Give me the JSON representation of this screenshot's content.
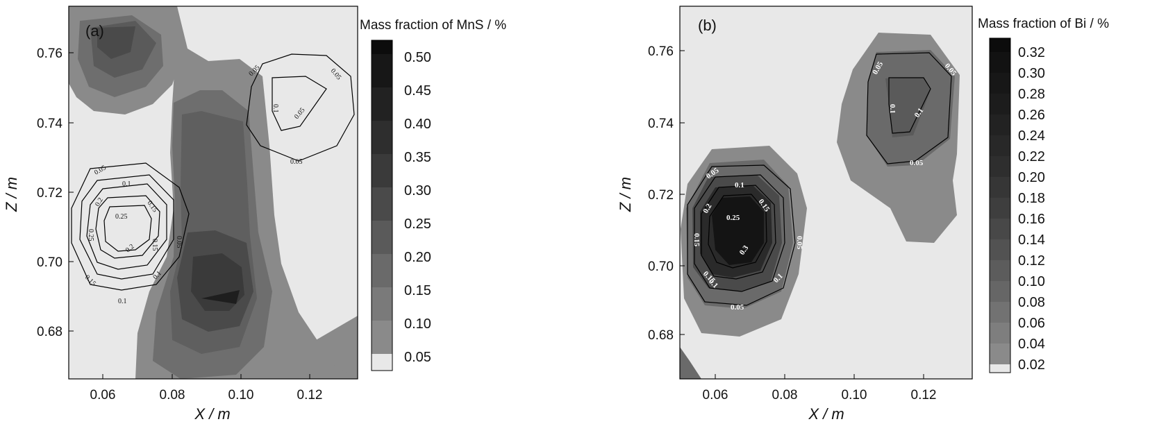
{
  "chart_data": [
    {
      "type": "heatmap",
      "subtype": "filled-contour",
      "panel_label": "(a)",
      "xlabel": "X / m",
      "ylabel": "Z / m",
      "xlim": [
        0.051,
        0.135
      ],
      "ylim": [
        0.666,
        0.773
      ],
      "x_ticks": [
        "0.06",
        "0.08",
        "0.10",
        "0.12"
      ],
      "y_ticks": [
        "0.68",
        "0.70",
        "0.72",
        "0.74",
        "0.76"
      ],
      "colorbar": {
        "title": "Mass fraction of MnS / %",
        "levels": [
          "0.05",
          "0.10",
          "0.15",
          "0.20",
          "0.25",
          "0.30",
          "0.35",
          "0.40",
          "0.45",
          "0.50"
        ]
      },
      "contour_labels": [
        "0.05",
        "0.1",
        "0.15",
        "0.2",
        "0.25",
        "0.05",
        "0.1",
        "0.15",
        "0.2",
        "0.25",
        "0.15",
        "0.1",
        "0.05",
        "0.05",
        "0.1",
        "0.05",
        "0.05",
        "0.1",
        "0.05"
      ]
    },
    {
      "type": "heatmap",
      "subtype": "filled-contour",
      "panel_label": "(b)",
      "xlabel": "X / m",
      "ylabel": "Z / m",
      "xlim": [
        0.051,
        0.135
      ],
      "ylim": [
        0.666,
        0.773
      ],
      "x_ticks": [
        "0.06",
        "0.08",
        "0.10",
        "0.12"
      ],
      "y_ticks": [
        "0.68",
        "0.70",
        "0.72",
        "0.74",
        "0.76"
      ],
      "colorbar": {
        "title": "Mass fraction of Bi / %",
        "levels": [
          "0.02",
          "0.04",
          "0.06",
          "0.08",
          "0.10",
          "0.12",
          "0.14",
          "0.16",
          "0.18",
          "0.20",
          "0.22",
          "0.24",
          "0.26",
          "0.28",
          "0.30",
          "0.32"
        ]
      },
      "contour_labels": [
        "0.05",
        "0.1",
        "0.15",
        "0.2",
        "0.25",
        "0.3",
        "0.15",
        "0.05",
        "0.1",
        "0.15",
        "0.2",
        "0.1",
        "0.05",
        "0.05",
        "0.05",
        "0.1",
        "0.1",
        "0.05"
      ]
    }
  ],
  "colors": {
    "background_fill": "#e8e8e8",
    "low_fill": "#8a8a8a",
    "mid_fill": "#5f5f5f",
    "dark_fill": "#3a3a3a",
    "core_fill": "#141414"
  }
}
